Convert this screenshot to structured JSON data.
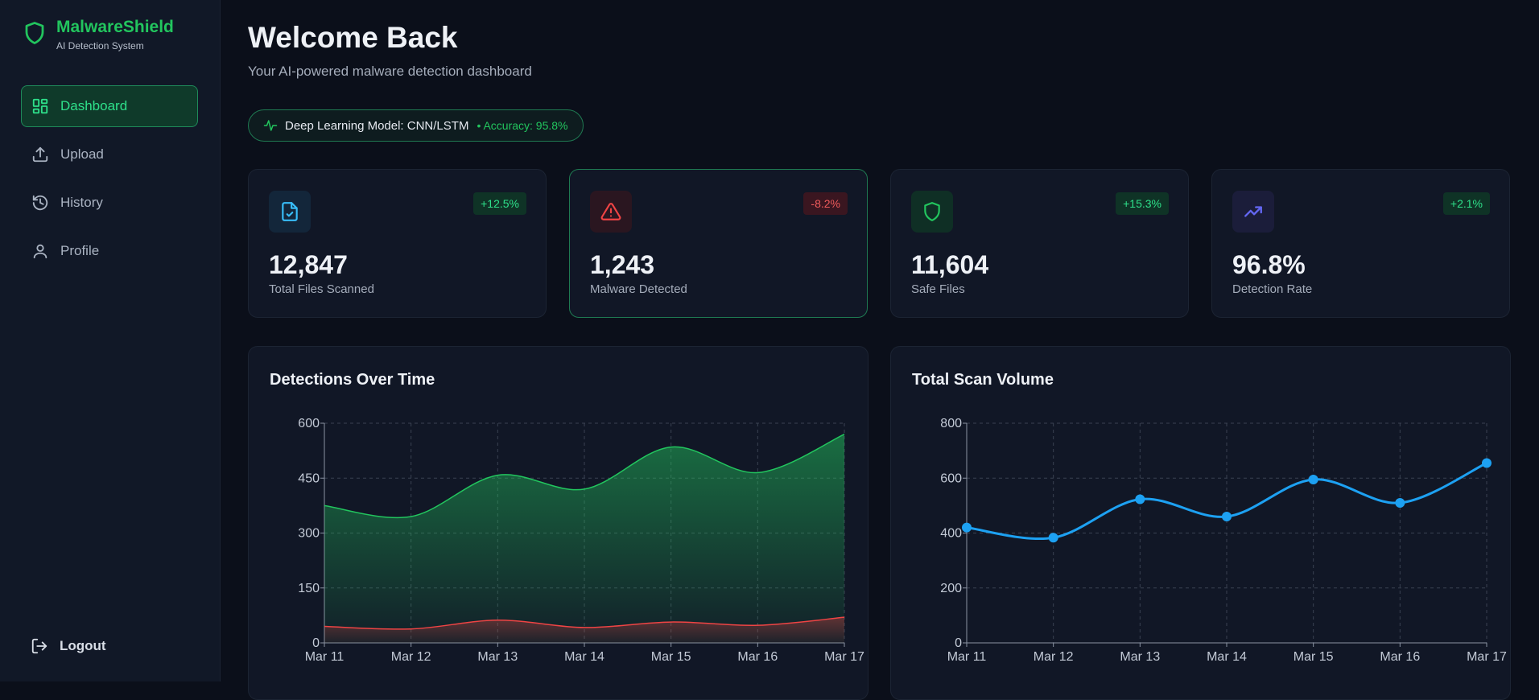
{
  "app": {
    "name": "MalwareShield",
    "tagline": "AI Detection System"
  },
  "nav": {
    "items": [
      {
        "label": "Dashboard",
        "icon": "dashboard-icon",
        "active": true
      },
      {
        "label": "Upload",
        "icon": "upload-icon"
      },
      {
        "label": "History",
        "icon": "history-icon"
      },
      {
        "label": "Profile",
        "icon": "user-icon"
      }
    ],
    "logout": "Logout"
  },
  "header": {
    "title": "Welcome Back",
    "subtitle": "Your AI-powered malware detection dashboard",
    "model_label": "Deep Learning Model: CNN/LSTM",
    "accuracy_label": "• Accuracy: 95.8%"
  },
  "stats": [
    {
      "value": "12,847",
      "label": "Total Files Scanned",
      "change": "+12.5%",
      "trend": "up",
      "icon": "file-check-icon",
      "accent": "#38bdf8"
    },
    {
      "value": "1,243",
      "label": "Malware Detected",
      "change": "-8.2%",
      "trend": "down",
      "icon": "alert-triangle-icon",
      "accent": "#ef4444"
    },
    {
      "value": "11,604",
      "label": "Safe Files",
      "change": "+15.3%",
      "trend": "up",
      "icon": "shield-icon",
      "accent": "#22c55e"
    },
    {
      "value": "96.8%",
      "label": "Detection Rate",
      "change": "+2.1%",
      "trend": "up",
      "icon": "trending-up-icon",
      "accent": "#6366f1"
    }
  ],
  "colors": {
    "brand": "#22c55e",
    "safe": "#22c55e",
    "malware": "#ef4444",
    "volume": "#1da1f2"
  },
  "chart_data": [
    {
      "type": "area",
      "title": "Detections Over Time",
      "categories": [
        "Mar 11",
        "Mar 12",
        "Mar 13",
        "Mar 14",
        "Mar 15",
        "Mar 16",
        "Mar 17"
      ],
      "series": [
        {
          "values": [
            375,
            345,
            458,
            420,
            535,
            465,
            570
          ],
          "color": "#22c55e"
        },
        {
          "values": [
            45,
            38,
            62,
            42,
            57,
            48,
            70
          ],
          "color": "#ef4444"
        }
      ],
      "ylim": [
        0,
        600
      ],
      "yticks": [
        0,
        150,
        300,
        450,
        600
      ],
      "grid": true
    },
    {
      "type": "line",
      "title": "Total Scan Volume",
      "categories": [
        "Mar 11",
        "Mar 12",
        "Mar 13",
        "Mar 14",
        "Mar 15",
        "Mar 16",
        "Mar 17"
      ],
      "series": [
        {
          "values": [
            420,
            383,
            523,
            460,
            595,
            510,
            655
          ],
          "color": "#1da1f2"
        }
      ],
      "ylim": [
        0,
        800
      ],
      "yticks": [
        0,
        200,
        400,
        600,
        800
      ],
      "grid": true
    }
  ]
}
